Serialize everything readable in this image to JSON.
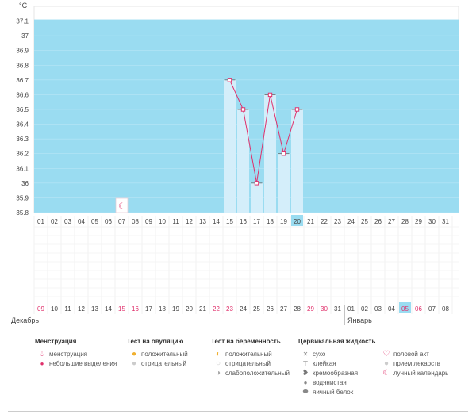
{
  "y_unit": "°C",
  "y_ticks": [
    "37.1",
    "37",
    "36.9",
    "36.8",
    "36.7",
    "36.6",
    "36.5",
    "36.4",
    "36.3",
    "36.2",
    "36.1",
    "36",
    "35.9",
    "35.8"
  ],
  "cycle_days": [
    "01",
    "02",
    "03",
    "04",
    "05",
    "06",
    "07",
    "08",
    "09",
    "10",
    "11",
    "12",
    "13",
    "14",
    "15",
    "16",
    "17",
    "18",
    "19",
    "20",
    "21",
    "22",
    "23",
    "24",
    "25",
    "26",
    "27",
    "28",
    "29",
    "30",
    "31"
  ],
  "calendar_dates": [
    "09",
    "10",
    "11",
    "12",
    "13",
    "14",
    "15",
    "16",
    "17",
    "18",
    "19",
    "20",
    "21",
    "22",
    "23",
    "24",
    "25",
    "26",
    "27",
    "28",
    "29",
    "30",
    "31",
    "01",
    "02",
    "03",
    "04",
    "05",
    "06",
    "07",
    "08"
  ],
  "pink_dates": [
    "09",
    "15",
    "16",
    "22",
    "23",
    "29",
    "30",
    "05",
    "06"
  ],
  "current_day_index": 19,
  "month_labels": {
    "left": "Декабрь",
    "right": "Январь"
  },
  "chart_data": {
    "type": "line",
    "ylabel": "°C",
    "ylim": [
      35.8,
      37.2
    ],
    "points": [
      {
        "day": "15",
        "temp": 36.7
      },
      {
        "day": "16",
        "temp": 36.5
      },
      {
        "day": "17",
        "temp": 36.0
      },
      {
        "day": "18",
        "temp": 36.6
      },
      {
        "day": "19",
        "temp": 36.2
      },
      {
        "day": "20",
        "temp": 36.5
      }
    ],
    "moon_marker_day": "07",
    "colors": {
      "shaded": "#9adcf1",
      "bars": "#d4eefa",
      "line": "#e0306b"
    }
  },
  "legend": {
    "menstruation": {
      "title": "Менструация",
      "items": [
        "менструация",
        "небольшие выделения"
      ]
    },
    "ovulation_test": {
      "title": "Тест на овуляцию",
      "items": [
        "положительный",
        "отрицательный"
      ]
    },
    "pregnancy_test": {
      "title": "Тест на беременность",
      "items": [
        "положительный",
        "отрицательный",
        "слабоположительный"
      ]
    },
    "cervical_fluid": {
      "title": "Цервикальная жидкость",
      "items": [
        "сухо",
        "клейкая",
        "кремообразная",
        "водянистая",
        "яичный белок"
      ]
    },
    "other": {
      "items": [
        "половой акт",
        "прием лекарств",
        "лунный календарь"
      ]
    }
  }
}
